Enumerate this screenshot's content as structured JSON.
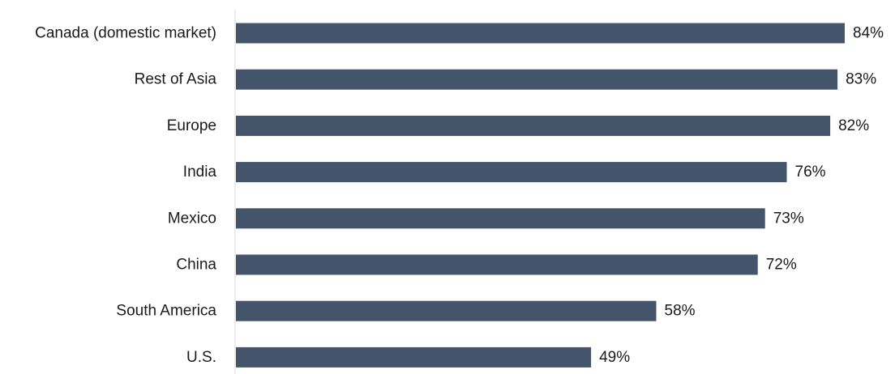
{
  "chart_data": {
    "type": "bar",
    "orientation": "horizontal",
    "categories": [
      "Canada (domestic market)",
      "Rest of Asia",
      "Europe",
      "India",
      "Mexico",
      "China",
      "South America",
      "U.S."
    ],
    "values": [
      84,
      83,
      82,
      76,
      73,
      72,
      58,
      49
    ],
    "value_labels": [
      "84%",
      "83%",
      "82%",
      "76%",
      "73%",
      "72%",
      "58%",
      "49%"
    ],
    "unit": "%",
    "xlim": [
      0,
      84
    ],
    "grid": false,
    "legend": "none",
    "bar_color": "#44546a",
    "axis_color": "#d9d9d9"
  }
}
